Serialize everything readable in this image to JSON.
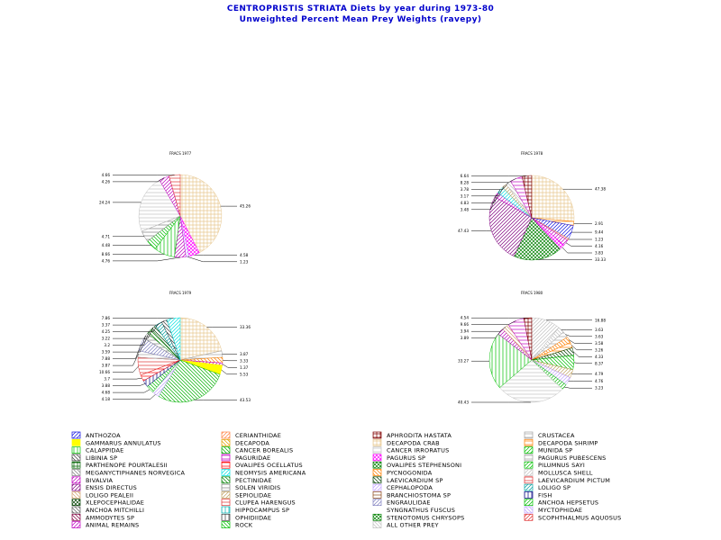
{
  "title": {
    "line1": "CENTROPRISTIS STRIATA Diets by year during 1973-80",
    "line2": "Unweighted Percent Mean Prey Weights (ravepy)"
  },
  "categories": [
    {
      "name": "ANTHOZOA",
      "color": "#1010e0",
      "pattern": "dright"
    },
    {
      "name": "GAMMARUS ANNULATUS",
      "color": "#ffff00",
      "pattern": "solid"
    },
    {
      "name": "CALAPPIDAE",
      "color": "#00c000",
      "pattern": "vert"
    },
    {
      "name": "LIBINIA SP",
      "color": "#404040",
      "pattern": "dleft"
    },
    {
      "name": "PARTHENOPE POURTALESII",
      "color": "#006400",
      "pattern": "cross"
    },
    {
      "name": "MEGANYCTIPHANES NORVEGICA",
      "color": "#808080",
      "pattern": "dleft"
    },
    {
      "name": "BIVALVIA",
      "color": "#c000c0",
      "pattern": "dright"
    },
    {
      "name": "ENSIS DIRECTUS",
      "color": "#800080",
      "pattern": "dright"
    },
    {
      "name": "LOLIGO PEALEII",
      "color": "#d2a070",
      "pattern": "dleft"
    },
    {
      "name": "XLEPOCEPHALIDAE",
      "color": "#004000",
      "pattern": "dcross"
    },
    {
      "name": "ANCHOA MITCHILLI",
      "color": "#606060",
      "pattern": "dleft"
    },
    {
      "name": "AMMODYTES SP",
      "color": "#800040",
      "pattern": "dleft"
    },
    {
      "name": "ANIMAL REMAINS",
      "color": "#c000c0",
      "pattern": "dright"
    },
    {
      "name": "CERIANTHIDAE",
      "color": "#ff8040",
      "pattern": "dright"
    },
    {
      "name": "DECAPODA",
      "color": "#e0a000",
      "pattern": "dleft"
    },
    {
      "name": "CANCER BOREALIS",
      "color": "#00b000",
      "pattern": "dleft"
    },
    {
      "name": "PAGURIDAE",
      "color": "#c000c0",
      "pattern": "horiz"
    },
    {
      "name": "OVALIPES OCELLATUS",
      "color": "#ff0000",
      "pattern": "horiz"
    },
    {
      "name": "NEOMYSIS AMERICANA",
      "color": "#00e0e0",
      "pattern": "dright"
    },
    {
      "name": "PECTINIDAE",
      "color": "#008000",
      "pattern": "dleft"
    },
    {
      "name": "SOLEN VIRIDIS",
      "color": "#808080",
      "pattern": "horiz"
    },
    {
      "name": "SEPIOLIDAE",
      "color": "#c0a060",
      "pattern": "dright"
    },
    {
      "name": "CLUPEA HARENGUS",
      "color": "#e03030",
      "pattern": "horiz"
    },
    {
      "name": "HIPPOCAMPUS SP",
      "color": "#00b0b0",
      "pattern": "vert"
    },
    {
      "name": "OPHIDIIDAE",
      "color": "#404040",
      "pattern": "vert"
    },
    {
      "name": "ROCK",
      "color": "#00c000",
      "pattern": "dleft"
    },
    {
      "name": "APHRODITA HASTATA",
      "color": "#800000",
      "pattern": "cross"
    },
    {
      "name": "DECAPODA CRAB",
      "color": "#e8c890",
      "pattern": "cross"
    },
    {
      "name": "CANCER IRRORATUS",
      "color": "#c0c0c0",
      "pattern": "horiz"
    },
    {
      "name": "PAGURUS SP",
      "color": "#ff00ff",
      "pattern": "dcross"
    },
    {
      "name": "OVALIPES STEPHENSONI",
      "color": "#008000",
      "pattern": "dcross"
    },
    {
      "name": "PYCNOGONIDA",
      "color": "#ff8000",
      "pattern": "dleft"
    },
    {
      "name": "LAEVICARDIUM SP",
      "color": "#004000",
      "pattern": "dleft"
    },
    {
      "name": "CEPHALOPODA",
      "color": "#c0a0ff",
      "pattern": "dright"
    },
    {
      "name": "BRANCHIOSTOMA SP",
      "color": "#8b4513",
      "pattern": "horiz"
    },
    {
      "name": "ENGRAULIDAE",
      "color": "#8080c0",
      "pattern": "dright"
    },
    {
      "name": "SYNGNATHUS FUSCUS",
      "color": "#ffffff",
      "pattern": "dleft"
    },
    {
      "name": "STENOTOMUS CHRYSOPS",
      "color": "#008000",
      "pattern": "dcross"
    },
    {
      "name": "ALL OTHER PREY",
      "color": "#c0c0c0",
      "pattern": "dleft"
    },
    {
      "name": "CRUSTACEA",
      "color": "#a0a0a0",
      "pattern": "horiz"
    },
    {
      "name": "DECAPODA SHRIMP",
      "color": "#ff8000",
      "pattern": "horiz"
    },
    {
      "name": "MUNIDA SP",
      "color": "#00c000",
      "pattern": "dright"
    },
    {
      "name": "PAGURUS PUBESCENS",
      "color": "#a0a0a0",
      "pattern": "horiz"
    },
    {
      "name": "PILUMNUS SAYI",
      "color": "#00c000",
      "pattern": "dright"
    },
    {
      "name": "MOLLUSCA SHELL",
      "color": "#c0c0c0",
      "pattern": "dright"
    },
    {
      "name": "LAEVICARDIUM PICTUM",
      "color": "#e03030",
      "pattern": "horiz"
    },
    {
      "name": "LOLIGO SP",
      "color": "#00a0a0",
      "pattern": "dright"
    },
    {
      "name": "FISH",
      "color": "#000080",
      "pattern": "vert"
    },
    {
      "name": "ANCHOA HEPSETUS",
      "color": "#00c000",
      "pattern": "dright"
    },
    {
      "name": "MYCTOPHIDAE",
      "color": "#c0a0ff",
      "pattern": "dleft"
    },
    {
      "name": "SCOPHTHALMUS AQUOSUS",
      "color": "#e03030",
      "pattern": "dright"
    }
  ],
  "chart_data": [
    {
      "type": "pie",
      "title": "FRACS 1977",
      "slices": [
        {
          "category": "DECAPODA CRAB",
          "value": 45.26
        },
        {
          "category": "PAGURUS SP",
          "value": 4.58
        },
        {
          "category": "CEPHALOPODA",
          "value": 1.23
        },
        {
          "category": "ANIMAL REMAINS",
          "value": 4.76
        },
        {
          "category": "CALAPPIDAE",
          "value": 8.66
        },
        {
          "category": "ROCK",
          "value": 4.48
        },
        {
          "category": "SOLEN VIRIDIS",
          "value": 4.71
        },
        {
          "category": "CANCER IRRORATUS",
          "value": 24.24
        },
        {
          "category": "BIVALVIA",
          "value": 4.26
        },
        {
          "category": "LAEVICARDIUM PICTUM",
          "value": 4.66
        }
      ],
      "labels": [
        "45.26",
        "4.58",
        "1.23",
        "4.76",
        "8.66",
        "4.48",
        "4.71",
        "24.24",
        "4.26",
        "4.66"
      ]
    },
    {
      "type": "pie",
      "title": "FRACS 1978",
      "slices": [
        {
          "category": "DECAPODA CRAB",
          "value": 47.38
        },
        {
          "category": "DECAPODA SHRIMP",
          "value": 2.91
        },
        {
          "category": "ANTHOZOA",
          "value": 9.44
        },
        {
          "category": "CERIANTHIDAE",
          "value": 1.23
        },
        {
          "category": "BIVALVIA",
          "value": 4.16
        },
        {
          "category": "PAGURUS SP",
          "value": 3.83
        },
        {
          "category": "OVALIPES STEPHENSONI",
          "value": 33.33
        },
        {
          "category": "ENSIS DIRECTUS",
          "value": 47.43
        },
        {
          "category": "ANIMAL REMAINS",
          "value": 3.48
        },
        {
          "category": "NEOMYSIS AMERICANA",
          "value": 4.83
        },
        {
          "category": "SEPIOLIDAE",
          "value": 3.17
        },
        {
          "category": "ALL OTHER PREY",
          "value": 3.78
        },
        {
          "category": "PAGURIDAE",
          "value": 8.28
        },
        {
          "category": "APHRODITA HASTATA",
          "value": 6.64
        }
      ],
      "labels": [
        "47.38",
        "2.91",
        "9.44",
        "1.23",
        "4.16",
        "3.83",
        "33.33",
        "47.43",
        "3.48",
        "4.83",
        "3.17",
        "3.78",
        "8.28",
        "6.64"
      ]
    },
    {
      "type": "pie",
      "title": "FRACS 1979",
      "slices": [
        {
          "category": "DECAPODA CRAB",
          "value": 33.36
        },
        {
          "category": "CRUSTACEA",
          "value": 3.87
        },
        {
          "category": "PYCNOGONIDA",
          "value": 3.33
        },
        {
          "category": "BIVALVIA",
          "value": 1.37
        },
        {
          "category": "GAMMARUS ANNULATUS",
          "value": 5.53
        },
        {
          "category": "CANCER BOREALIS",
          "value": 43.53
        },
        {
          "category": "CEPHALOPODA",
          "value": 4.18
        },
        {
          "category": "ROCK",
          "value": 4.68
        },
        {
          "category": "FISH",
          "value": 3.88
        },
        {
          "category": "OVALIPES OCELLATUS",
          "value": 3.7
        },
        {
          "category": "CLUPEA HARENGUS",
          "value": 10.66
        },
        {
          "category": "PAGURUS PUBESCENS",
          "value": 3.87
        },
        {
          "category": "ENGRAULIDAE",
          "value": 7.88
        },
        {
          "category": "SOLEN VIRIDIS",
          "value": 3.59
        },
        {
          "category": "PECTINIDAE",
          "value": 3.2
        },
        {
          "category": "LAEVICARDIUM SP",
          "value": 3.22
        },
        {
          "category": "LOLIGO SP",
          "value": 4.25
        },
        {
          "category": "LIBINIA SP",
          "value": 3.37
        },
        {
          "category": "NEOMYSIS AMERICANA",
          "value": 7.86
        }
      ],
      "labels": [
        "33.36",
        "3.87",
        "3.33",
        "1.37",
        "5.53",
        "43.53",
        "4.18",
        "4.68",
        "3.88",
        "3.7",
        "10.66",
        "3.87",
        "7.88",
        "3.59",
        "3.2",
        "3.22",
        "4.25",
        "3.37",
        "7.86"
      ]
    },
    {
      "type": "pie",
      "title": "FRACS 1980",
      "slices": [
        {
          "category": "MOLLUSCA SHELL",
          "value": 16.88
        },
        {
          "category": "ALL OTHER PREY",
          "value": 3.63
        },
        {
          "category": "CRUSTACEA",
          "value": 3.63
        },
        {
          "category": "PYCNOGONIDA",
          "value": 3.58
        },
        {
          "category": "DECAPODA SHRIMP",
          "value": 3.26
        },
        {
          "category": "LAEVICARDIUM SP",
          "value": 4.33
        },
        {
          "category": "ROCK",
          "value": 8.37
        },
        {
          "category": "SEPIOLIDAE",
          "value": 4.79
        },
        {
          "category": "CEPHALOPODA",
          "value": 4.76
        },
        {
          "category": "MUNIDA SP",
          "value": 3.23
        },
        {
          "category": "CANCER IRRORATUS",
          "value": 40.43
        },
        {
          "category": "CALAPPIDAE",
          "value": 33.27
        },
        {
          "category": "BIVALVIA",
          "value": 3.89
        },
        {
          "category": "LOLIGO PEALEII",
          "value": 3.94
        },
        {
          "category": "PAGURIDAE",
          "value": 9.66
        },
        {
          "category": "APHRODITA HASTATA",
          "value": 4.54
        }
      ],
      "labels": [
        "16.88",
        "3.63",
        "3.63",
        "3.58",
        "3.26",
        "4.33",
        "8.37",
        "4.79",
        "4.76",
        "3.23",
        "40.43",
        "33.27",
        "3.89",
        "3.94",
        "9.66",
        "4.54"
      ]
    }
  ]
}
